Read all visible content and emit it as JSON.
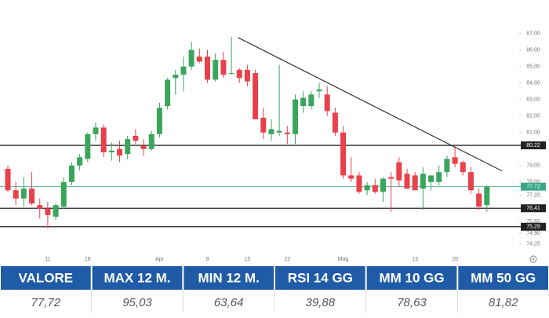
{
  "chart_data": {
    "type": "candlestick",
    "categories": [
      null,
      null,
      null,
      null,
      null,
      "11",
      null,
      null,
      null,
      null,
      "18",
      null,
      null,
      null,
      null,
      null,
      null,
      null,
      null,
      "Apr",
      null,
      null,
      null,
      null,
      null,
      "8",
      null,
      null,
      null,
      null,
      "15",
      null,
      null,
      null,
      null,
      "22",
      null,
      null,
      null,
      null,
      null,
      null,
      "Mag",
      null,
      null,
      null,
      null,
      null,
      null,
      null,
      null,
      "13",
      null,
      null,
      null,
      null,
      "20",
      null,
      null,
      null,
      null
    ],
    "open": [
      78.8,
      77.5,
      77.0,
      77.6,
      76.6,
      76.4,
      75.9,
      76.5,
      78.0,
      79.0,
      79.4,
      80.9,
      81.3,
      79.8,
      80.0,
      79.7,
      80.8,
      80.2,
      80.0,
      80.9,
      82.6,
      84.3,
      84.5,
      85.0,
      85.6,
      85.6,
      84.2,
      85.4,
      84.6,
      84.8,
      84.8,
      84.6,
      81.9,
      80.9,
      81.0,
      81.0,
      80.9,
      82.6,
      82.6,
      83.5,
      83.3,
      82.2,
      81.0,
      78.4,
      78.4,
      77.5,
      77.8,
      77.4,
      78.3,
      79.2,
      78.5,
      78.4,
      77.6,
      78.0,
      78.0,
      78.6,
      79.5,
      79.2,
      78.6,
      77.3,
      76.6
    ],
    "high": [
      79.0,
      78.0,
      78.3,
      78.6,
      77.0,
      76.8,
      76.7,
      78.3,
      79.2,
      79.7,
      81.0,
      81.6,
      81.5,
      80.4,
      80.5,
      80.8,
      81.2,
      80.6,
      81.1,
      82.8,
      84.3,
      84.8,
      85.6,
      86.5,
      86.1,
      86.0,
      85.8,
      85.9,
      86.8,
      84.9,
      85.1,
      84.8,
      82.5,
      81.8,
      85.1,
      81.4,
      83.3,
      83.5,
      83.5,
      84.0,
      83.8,
      82.5,
      81.4,
      79.5,
      78.6,
      78.0,
      78.2,
      78.3,
      78.6,
      79.5,
      78.8,
      78.6,
      78.9,
      78.4,
      79.0,
      79.6,
      80.2,
      79.3,
      78.9,
      77.6,
      77.8
    ],
    "low": [
      77.4,
      76.6,
      76.5,
      76.6,
      75.8,
      75.2,
      75.7,
      76.4,
      77.8,
      78.7,
      79.2,
      80.5,
      79.5,
      79.3,
      79.2,
      79.4,
      80.3,
      79.6,
      79.9,
      80.7,
      82.4,
      83.3,
      83.5,
      84.8,
      85.2,
      84.0,
      84.1,
      84.3,
      84.5,
      84.0,
      83.8,
      81.8,
      80.6,
      80.5,
      80.8,
      80.3,
      80.3,
      82.2,
      82.4,
      83.1,
      82.0,
      80.8,
      78.2,
      78.0,
      77.3,
      77.2,
      77.3,
      76.8,
      76.2,
      77.7,
      77.6,
      77.5,
      76.3,
      77.5,
      77.8,
      78.3,
      78.9,
      78.4,
      77.3,
      76.3,
      76.2
    ],
    "close": [
      77.5,
      77.0,
      77.6,
      76.7,
      76.4,
      76.0,
      76.6,
      78.0,
      79.0,
      79.5,
      80.9,
      81.3,
      79.8,
      79.9,
      79.6,
      80.6,
      80.5,
      80.0,
      80.9,
      82.5,
      84.2,
      84.5,
      85.0,
      86.0,
      85.3,
      84.2,
      85.4,
      84.5,
      84.6,
      84.3,
      84.1,
      81.8,
      81.0,
      81.2,
      81.1,
      80.9,
      83.0,
      83.1,
      83.3,
      83.6,
      82.3,
      81.0,
      78.4,
      78.2,
      77.4,
      77.8,
      77.4,
      78.2,
      78.2,
      78.1,
      77.6,
      77.5,
      78.5,
      78.4,
      78.6,
      79.4,
      79.1,
      78.6,
      77.5,
      76.5,
      77.72
    ],
    "up_color": "#3aa55d",
    "down_color": "#e8414b",
    "ylim": [
      73.9,
      87.6
    ],
    "yticks": [
      {
        "value": 87,
        "label": "87,00"
      },
      {
        "value": 86,
        "label": "86,00"
      },
      {
        "value": 85,
        "label": "85,00"
      },
      {
        "value": 84,
        "label": "84,00"
      },
      {
        "value": 83,
        "label": "83,00"
      },
      {
        "value": 82,
        "label": "82,00"
      },
      {
        "value": 81,
        "label": "81,00"
      },
      {
        "value": 79,
        "label": "79,00"
      },
      {
        "value": 78,
        "label": "78,00"
      },
      {
        "value": 77.2,
        "label": "77,20"
      },
      {
        "value": 75.6,
        "label": "75,60"
      },
      {
        "value": 74.9,
        "label": "74,90"
      },
      {
        "value": 74.25,
        "label": "74,25"
      }
    ],
    "levels": [
      {
        "value": 80.22,
        "label": "80,22",
        "color": "#222222"
      },
      {
        "value": 77.72,
        "label": "77,72",
        "color": "#3aa58a"
      },
      {
        "value": 76.41,
        "label": "76,41",
        "color": "#222222"
      },
      {
        "value": 75.29,
        "label": "75,29",
        "color": "#222222"
      }
    ],
    "trendline": {
      "x": [
        28.8,
        61.9
      ],
      "y": [
        86.76,
        78.67
      ],
      "color": "#333333"
    }
  },
  "table": {
    "headers": [
      "VALORE",
      "MAX 12 M.",
      "MIN 12 M.",
      "RSI 14 GG",
      "MM 10 GG",
      "MM 50 GG"
    ],
    "rows": [
      [
        "77,72",
        "95,03",
        "63,64",
        "39,88",
        "78,63",
        "81,82"
      ]
    ]
  }
}
